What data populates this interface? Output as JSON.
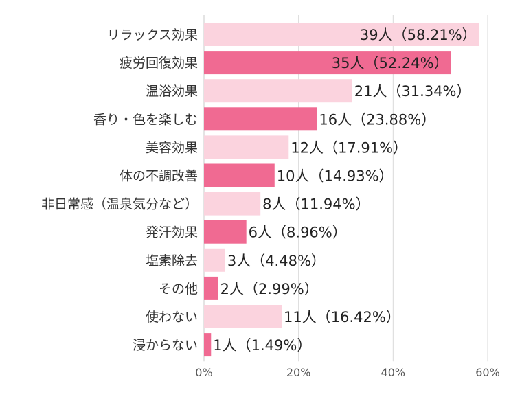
{
  "chart_data": {
    "type": "bar",
    "orientation": "horizontal",
    "categories": [
      "リラックス効果",
      "疲労回復効果",
      "温浴効果",
      "香り・色を楽しむ",
      "美容効果",
      "体の不調改善",
      "非日常感（温泉気分など）",
      "発汗効果",
      "塩素除去",
      "その他",
      "使わない",
      "浸からない"
    ],
    "values": [
      58.21,
      52.24,
      31.34,
      23.88,
      17.91,
      14.93,
      11.94,
      8.96,
      4.48,
      2.99,
      16.42,
      1.49
    ],
    "data_labels": [
      "39人（58.21%）",
      "35人（52.24%）",
      "21人（31.34%）",
      "16人（23.88%）",
      "12人（17.91%）",
      "10人（14.93%）",
      "8人（11.94%）",
      "6人（8.96%）",
      "3人（4.48%）",
      "2人（2.99%）",
      "11人（16.42%）",
      "1人（1.49%）"
    ],
    "xlim": [
      0,
      60
    ],
    "x_ticks": [
      "0%",
      "20%",
      "40%",
      "60%"
    ],
    "grid": true,
    "colors": {
      "light": "#fbd3de",
      "dark": "#f06a92"
    },
    "title": "",
    "xlabel": "",
    "ylabel": ""
  }
}
